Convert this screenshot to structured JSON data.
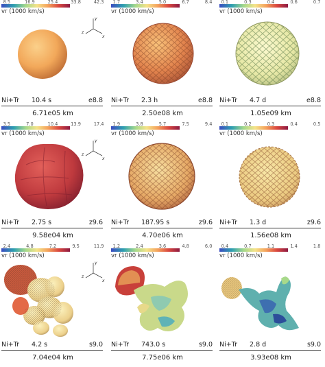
{
  "panels": [
    {
      "ticks": [
        "8.5",
        "16.9",
        "25.4",
        "33.8",
        "42.3"
      ],
      "colorbar_label": "vr (1000 km/s)",
      "elements": "Ni+Tr",
      "time": "10.4  s",
      "model": "e8.8",
      "scale": "6.71e05 km",
      "axes": {
        "x": "x",
        "y": "y",
        "z": "z"
      }
    },
    {
      "ticks": [
        "1.7",
        "3.4",
        "5.0",
        "6.7",
        "8.4"
      ],
      "colorbar_label": "vr (1000 km/s)",
      "elements": "Ni+Tr",
      "time": "2.3  h",
      "model": "e8.8",
      "scale": "2.50e08 km"
    },
    {
      "ticks": [
        "0.1",
        "0.3",
        "0.4",
        "0.6",
        "0.7"
      ],
      "colorbar_label": "vr (1000 km/s)",
      "elements": "Ni+Tr",
      "time": "4.7  d",
      "model": "e8.8",
      "scale": "1.05e09 km"
    },
    {
      "ticks": [
        "3.5",
        "7.0",
        "10.4",
        "13.9",
        "17.4"
      ],
      "colorbar_label": "vr (1000 km/s)",
      "elements": "Ni+Tr",
      "time": "2.75  s",
      "model": "z9.6",
      "scale": "9.58e04 km",
      "axes": {
        "x": "x",
        "y": "y",
        "z": "z"
      }
    },
    {
      "ticks": [
        "1.9",
        "3.8",
        "5.7",
        "7.5",
        "9.4"
      ],
      "colorbar_label": "vr (1000 km/s)",
      "elements": "Ni+Tr",
      "time": "187.95  s",
      "model": "z9.6",
      "scale": "4.70e06 km"
    },
    {
      "ticks": [
        "0.1",
        "0.2",
        "0.3",
        "0.4",
        "0.5"
      ],
      "colorbar_label": "vr (1000 km/s)",
      "elements": "Ni+Tr",
      "time": "1.3  d",
      "model": "z9.6",
      "scale": "1.56e08 km"
    },
    {
      "ticks": [
        "2.4",
        "4.8",
        "7.2",
        "9.5",
        "11.9"
      ],
      "colorbar_label": "vr (1000 km/s)",
      "elements": "Ni+Tr",
      "time": "4.2  s",
      "model": "s9.0",
      "scale": "7.04e04 km",
      "axes": {
        "x": "x",
        "y": "y",
        "z": "z"
      }
    },
    {
      "ticks": [
        "1.2",
        "2.4",
        "3.6",
        "4.8",
        "6.0"
      ],
      "colorbar_label": "vr (1000 km/s)",
      "elements": "Ni+Tr",
      "time": "743.0  s",
      "model": "s9.0",
      "scale": "7.75e06 km"
    },
    {
      "ticks": [
        "0.4",
        "0.7",
        "1.1",
        "1.4",
        "1.8"
      ],
      "colorbar_label": "vr (1000 km/s)",
      "elements": "Ni+Tr",
      "time": "2.8  d",
      "model": "s9.0",
      "scale": "3.93e08 km"
    }
  ],
  "colors": {
    "colormap": [
      "#3b4cc0",
      "#2e9fb0",
      "#a8d98a",
      "#f5e38a",
      "#f4a25c",
      "#d9473f",
      "#8e1b43"
    ],
    "background": "#ffffff",
    "text": "#222222"
  },
  "renders": [
    {
      "shape": "smooth-sphere",
      "color": "#f2a85a"
    },
    {
      "shape": "bumpy-sphere",
      "color": "#e78d54"
    },
    {
      "shape": "bumpy-sphere",
      "color": "#eaeaa8"
    },
    {
      "shape": "lobed-sphere",
      "color": "#c23a3e"
    },
    {
      "shape": "cellular-sphere",
      "color": "#e9b96a"
    },
    {
      "shape": "clumpy-sphere",
      "color": "#f0cf82"
    },
    {
      "shape": "bubble-plume",
      "color": "#f1d58f"
    },
    {
      "shape": "turbulent-plume",
      "color": "#d9df8c"
    },
    {
      "shape": "turbulent-plume",
      "color": "#6fb8b2"
    }
  ]
}
